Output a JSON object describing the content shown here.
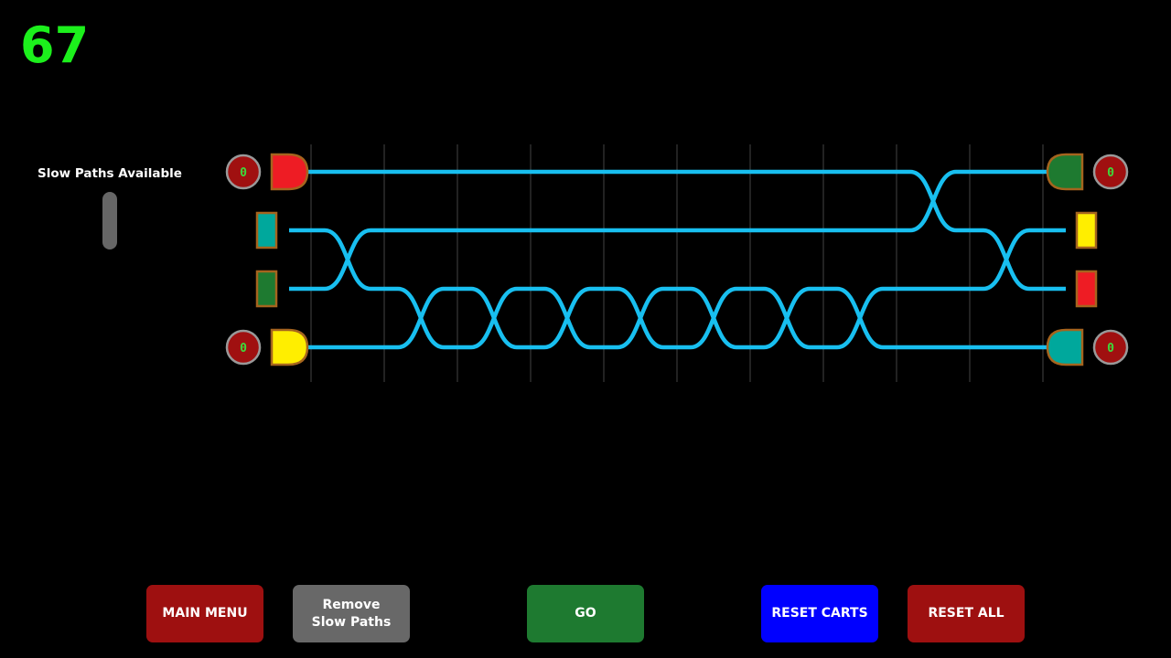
{
  "score": "67",
  "slow_paths": {
    "label": "Slow Paths Available",
    "available_level": 0
  },
  "colors": {
    "track": "#18bff0",
    "grid": "#444444",
    "outline": "#a5641e",
    "counter_bg": "#a01010",
    "counter_ring": "#999999"
  },
  "board": {
    "columns": 10,
    "crossings": [
      {
        "column": 0,
        "rows": [
          1,
          2
        ]
      },
      {
        "column": 1,
        "rows": [
          2,
          3
        ]
      },
      {
        "column": 2,
        "rows": [
          2,
          3
        ]
      },
      {
        "column": 3,
        "rows": [
          2,
          3
        ]
      },
      {
        "column": 4,
        "rows": [
          2,
          3
        ]
      },
      {
        "column": 5,
        "rows": [
          2,
          3
        ]
      },
      {
        "column": 6,
        "rows": [
          2,
          3
        ]
      },
      {
        "column": 7,
        "rows": [
          2,
          3
        ]
      },
      {
        "column": 8,
        "rows": [
          0,
          1
        ]
      },
      {
        "column": 9,
        "rows": [
          1,
          2
        ]
      }
    ],
    "left_gates": [
      {
        "row": 0,
        "color": "#ee1c24",
        "counter": "0"
      },
      {
        "row": 3,
        "color": "#ffee00",
        "counter": "0"
      }
    ],
    "right_gates": [
      {
        "row": 0,
        "color": "#1e7a30",
        "counter": "0"
      },
      {
        "row": 3,
        "color": "#00a89c",
        "counter": "0"
      }
    ],
    "left_carts": [
      {
        "row": 1,
        "color": "#00a89c"
      },
      {
        "row": 2,
        "color": "#1e7a30"
      }
    ],
    "right_carts": [
      {
        "row": 1,
        "color": "#ffee00"
      },
      {
        "row": 2,
        "color": "#ee1c24"
      }
    ]
  },
  "buttons": {
    "main_menu": {
      "label": "MAIN MENU",
      "color": "#9e1010"
    },
    "remove_slow": {
      "label": "Remove\nSlow Paths",
      "color": "#686868"
    },
    "go": {
      "label": "GO",
      "color": "#1e7a30"
    },
    "reset_carts": {
      "label": "RESET CARTS",
      "color": "#0000ff"
    },
    "reset_all": {
      "label": "RESET ALL",
      "color": "#9e1010"
    }
  }
}
